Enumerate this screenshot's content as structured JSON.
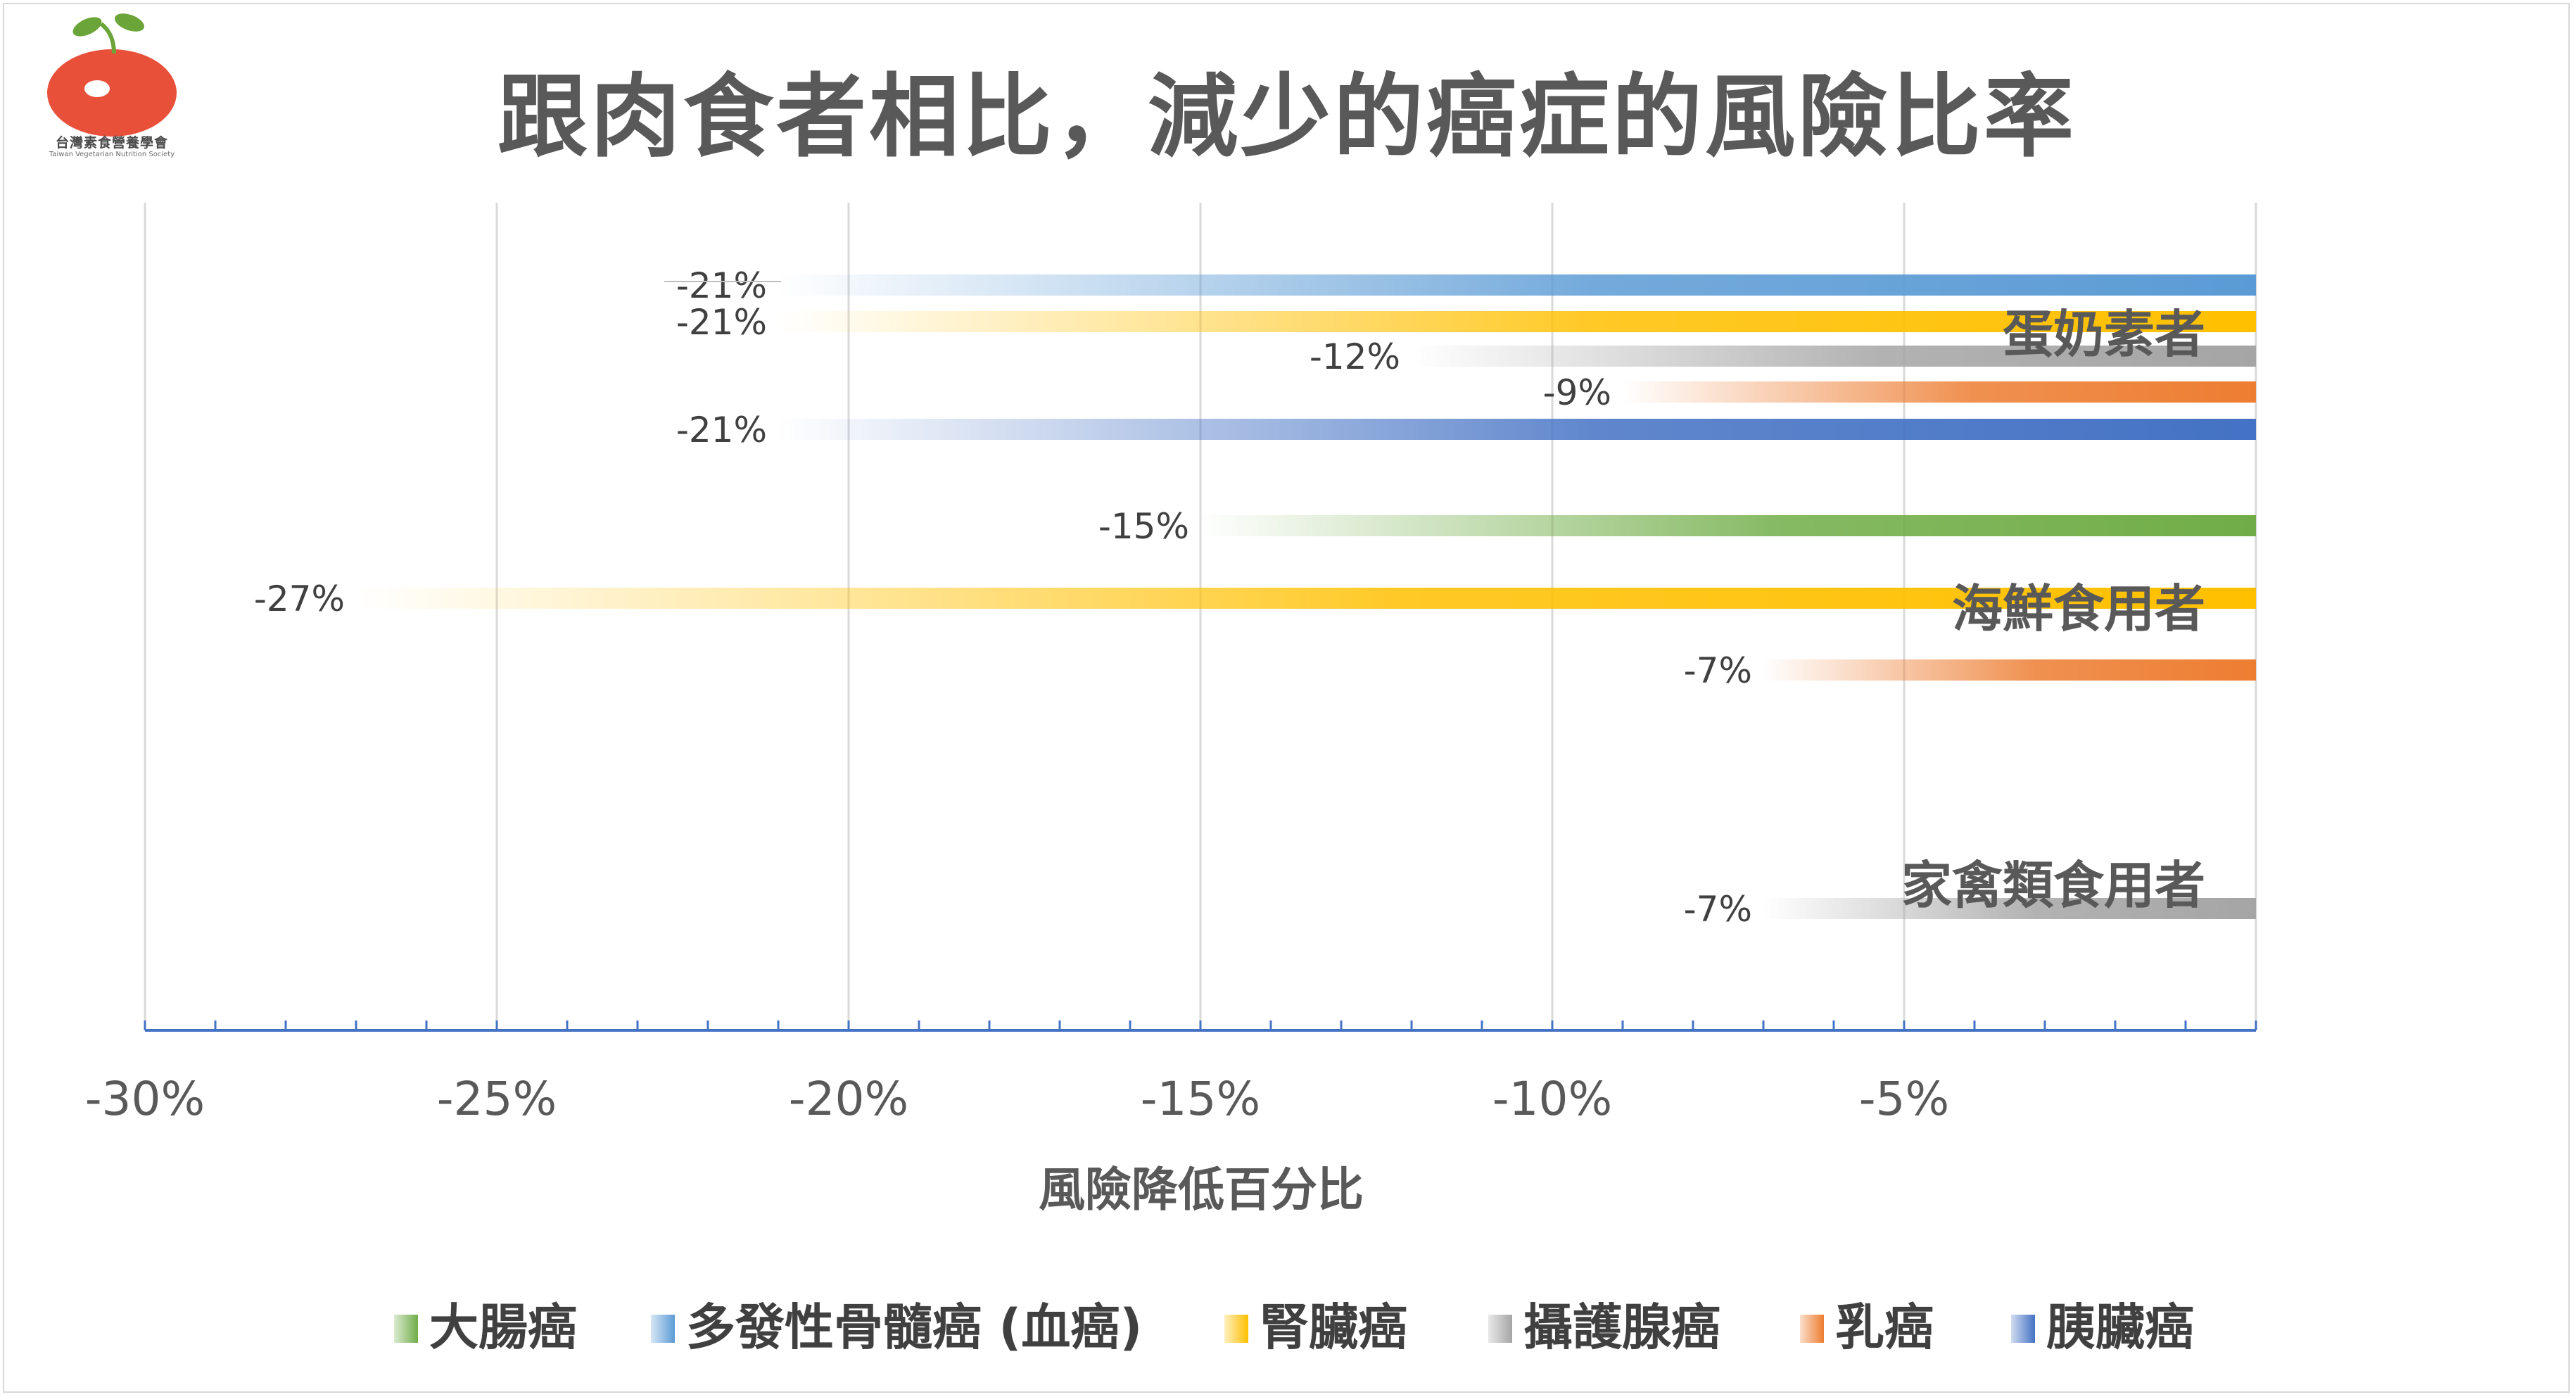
{
  "logo": {
    "name": "台灣素食營養學會",
    "subtitle": "Taiwan Vegetarian Nutrition Society"
  },
  "colors": {
    "colorectal": "#70AD47",
    "myeloma": "#5B9BD5",
    "kidney": "#FFC000",
    "prostate": "#A5A5A5",
    "breast": "#ED7D31",
    "pancreas": "#4472C4",
    "text": "#595959",
    "axis": "#4472C4",
    "grid": "#D9D9D9"
  },
  "chart_data": {
    "type": "bar",
    "orientation": "horizontal",
    "title": "跟肉食者相比，減少的癌症的風險比率",
    "xlabel": "風險降低百分比",
    "xlim": [
      -30,
      0
    ],
    "x_ticks": [
      -30,
      -25,
      -20,
      -15,
      -10,
      -5
    ],
    "x_tick_labels": [
      "-30%",
      "-25%",
      "-20%",
      "-15%",
      "-10%",
      "-5%"
    ],
    "categories": [
      "蛋奶素者",
      "海鮮食用者",
      "家禽類食用者"
    ],
    "legend": [
      {
        "key": "colorectal",
        "label": "大腸癌"
      },
      {
        "key": "myeloma",
        "label": "多發性骨髓癌 (血癌)"
      },
      {
        "key": "kidney",
        "label": "腎臟癌"
      },
      {
        "key": "prostate",
        "label": "攝護腺癌"
      },
      {
        "key": "breast",
        "label": "乳癌"
      },
      {
        "key": "pancreas",
        "label": "胰臟癌"
      }
    ],
    "legend_position": "bottom",
    "bars": [
      {
        "group": "蛋奶素者",
        "series": "myeloma",
        "value": -21,
        "label": "-21%"
      },
      {
        "group": "蛋奶素者",
        "series": "kidney",
        "value": -21,
        "label": "-21%"
      },
      {
        "group": "蛋奶素者",
        "series": "prostate",
        "value": -12,
        "label": "-12%"
      },
      {
        "group": "蛋奶素者",
        "series": "breast",
        "value": -9,
        "label": "-9%"
      },
      {
        "group": "蛋奶素者",
        "series": "pancreas",
        "value": -21,
        "label": "-21%"
      },
      {
        "group": "海鮮食用者",
        "series": "colorectal",
        "value": -15,
        "label": "-15%"
      },
      {
        "group": "海鮮食用者",
        "series": "kidney",
        "value": -27,
        "label": "-27%"
      },
      {
        "group": "海鮮食用者",
        "series": "breast",
        "value": -7,
        "label": "-7%"
      },
      {
        "group": "家禽類食用者",
        "series": "prostate",
        "value": -7,
        "label": "-7%"
      }
    ]
  }
}
